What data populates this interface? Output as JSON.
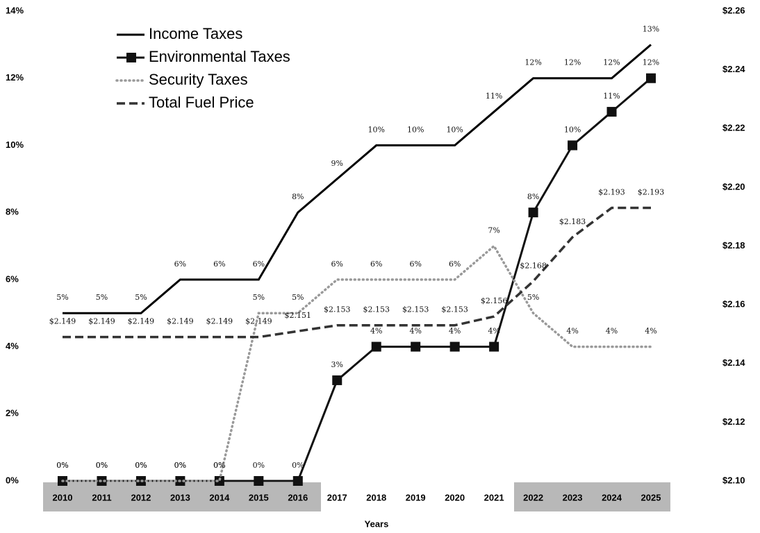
{
  "chart_data": {
    "type": "line",
    "x_label": "Years",
    "categories": [
      "2010",
      "2011",
      "2012",
      "2013",
      "2014",
      "2015",
      "2016",
      "2017",
      "2018",
      "2019",
      "2020",
      "2021",
      "2022",
      "2023",
      "2024",
      "2025"
    ],
    "ylim": [
      0,
      14
    ],
    "yticks": [
      {
        "value": 0,
        "label": "0%"
      },
      {
        "value": 2,
        "label": "2%"
      },
      {
        "value": 4,
        "label": "4%"
      },
      {
        "value": 6,
        "label": "6%"
      },
      {
        "value": 8,
        "label": "8%"
      },
      {
        "value": 10,
        "label": "10%"
      },
      {
        "value": 12,
        "label": "12%"
      },
      {
        "value": 14,
        "label": "14%"
      }
    ],
    "y2lim": [
      2.1,
      2.26
    ],
    "y2ticks": [
      {
        "value": 2.1,
        "label": "$2.10"
      },
      {
        "value": 2.12,
        "label": "$2.12"
      },
      {
        "value": 2.14,
        "label": "$2.14"
      },
      {
        "value": 2.16,
        "label": "$2.16"
      },
      {
        "value": 2.18,
        "label": "$2.18"
      },
      {
        "value": 2.2,
        "label": "$2.20"
      },
      {
        "value": 2.22,
        "label": "$2.22"
      },
      {
        "value": 2.24,
        "label": "$2.24"
      },
      {
        "value": 2.26,
        "label": "$2.26"
      }
    ],
    "legend": "upper left",
    "series": [
      {
        "name": "Income Taxes",
        "color": "#000000",
        "style": "solid",
        "values": [
          5,
          5,
          5,
          6,
          6,
          6,
          8,
          9,
          10,
          10,
          10,
          11,
          12,
          12,
          12,
          13
        ],
        "value_labels": [
          "5%",
          "5%",
          "5%",
          "6%",
          "6%",
          "6%",
          "8%",
          "9%",
          "10%",
          "10%",
          "10%",
          "11%",
          "12%",
          "12%",
          "12%",
          "13%"
        ]
      },
      {
        "name": "Environmental Taxes",
        "color": "#111111",
        "style": "marker",
        "values": [
          0,
          0,
          0,
          0,
          0,
          0,
          0,
          3,
          4,
          4,
          4,
          4,
          8,
          10,
          11,
          12
        ],
        "value_labels": [
          "0%",
          "0%",
          "0%",
          "0%",
          "0%",
          "0%",
          "0%",
          "3%",
          "4%",
          "4%",
          "4%",
          "4%",
          "8%",
          "10%",
          "11%",
          "12%"
        ]
      },
      {
        "name": "Security Taxes",
        "color": "#999999",
        "style": "dotted",
        "values": [
          0,
          0,
          0,
          0,
          0,
          5,
          5,
          6,
          6,
          6,
          6,
          7,
          5,
          4,
          4,
          4
        ],
        "value_labels": [
          "0%",
          "0%",
          "0%",
          "0%",
          "0%",
          "5%",
          "5%",
          "6%",
          "6%",
          "6%",
          "6%",
          "7%",
          "5%",
          "4%",
          "4%",
          "4%"
        ]
      },
      {
        "name": "Total Fuel Price",
        "color": "#333333",
        "style": "dashed",
        "axis": "y2",
        "values": [
          2.149,
          2.149,
          2.149,
          2.149,
          2.149,
          2.149,
          2.151,
          2.153,
          2.153,
          2.153,
          2.153,
          2.156,
          2.168,
          2.183,
          2.193,
          2.193
        ],
        "value_labels": [
          "$2.149",
          "$2.149",
          "$2.149",
          "$2.149",
          "$2.149",
          "$2.149",
          "$2.151",
          "$2.153",
          "$2.153",
          "$2.153",
          "$2.153",
          "$2.156",
          "$2.168",
          "$2.183",
          "$2.193",
          "$2.193"
        ]
      }
    ]
  }
}
